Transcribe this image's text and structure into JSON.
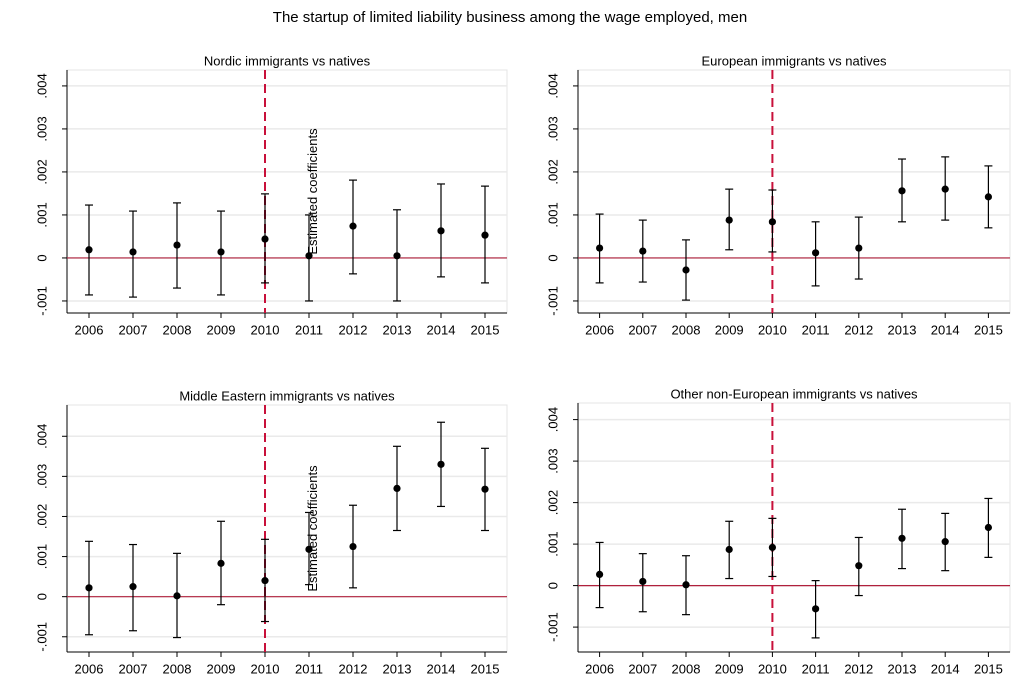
{
  "title": "The startup of limited liability business among the wage employed, men",
  "chart_data": [
    {
      "type": "errorbar",
      "title": "Nordic immigrants vs natives",
      "ylabel": "Estimated coefficients",
      "x": [
        2006,
        2007,
        2008,
        2009,
        2010,
        2011,
        2012,
        2013,
        2014,
        2015
      ],
      "series": [
        {
          "color": "#000000",
          "values": [
            0.00019,
            0.00014,
            0.0003,
            0.00014,
            0.00044,
            5e-05,
            0.00074,
            5e-05,
            0.00063,
            0.00053
          ],
          "lower": [
            -0.00086,
            -0.00091,
            -0.0007,
            -0.00086,
            -0.00058,
            -0.001,
            -0.00037,
            -0.001,
            -0.00044,
            -0.00058
          ],
          "upper": [
            0.00123,
            0.00109,
            0.00128,
            0.00109,
            0.00149,
            0.001,
            0.00181,
            0.00112,
            0.00172,
            0.00167
          ]
        }
      ],
      "xlim": [
        2005.5,
        2015.5
      ],
      "xticks": [
        2006,
        2007,
        2008,
        2009,
        2010,
        2011,
        2012,
        2013,
        2014,
        2015
      ],
      "ylim": [
        -0.00128,
        0.00437
      ],
      "yticks": [
        {
          "value": -0.001,
          "label": "-.001"
        },
        0,
        {
          "value": 0.001,
          "label": ".001"
        },
        {
          "value": 0.002,
          "label": ".002"
        },
        {
          "value": 0.003,
          "label": ".003"
        },
        {
          "value": 0.004,
          "label": ".004"
        }
      ],
      "grid": true,
      "refline_y": 0,
      "refline_y_color": "#b0203c",
      "refline_x": 2010,
      "refline_x_color": "#c8103a"
    },
    {
      "type": "errorbar",
      "title": "European immigrants vs natives",
      "x": [
        2006,
        2007,
        2008,
        2009,
        2010,
        2011,
        2012,
        2013,
        2014,
        2015
      ],
      "series": [
        {
          "color": "#000000",
          "values": [
            0.00023,
            0.00016,
            -0.00028,
            0.00088,
            0.00084,
            0.00012,
            0.00023,
            0.00156,
            0.0016,
            0.00142
          ],
          "lower": [
            -0.00058,
            -0.00056,
            -0.00098,
            0.00019,
            0.00014,
            -0.00065,
            -0.00049,
            0.00084,
            0.00088,
            0.0007
          ],
          "upper": [
            0.00102,
            0.00088,
            0.00042,
            0.0016,
            0.00158,
            0.00084,
            0.00095,
            0.0023,
            0.00235,
            0.00214
          ]
        }
      ],
      "xlim": [
        2005.5,
        2015.5
      ],
      "xticks": [
        2006,
        2007,
        2008,
        2009,
        2010,
        2011,
        2012,
        2013,
        2014,
        2015
      ],
      "ylim": [
        -0.00128,
        0.00437
      ],
      "yticks": [
        {
          "value": -0.001,
          "label": "-.001"
        },
        0,
        {
          "value": 0.001,
          "label": ".001"
        },
        {
          "value": 0.002,
          "label": ".002"
        },
        {
          "value": 0.003,
          "label": ".003"
        },
        {
          "value": 0.004,
          "label": ".004"
        }
      ],
      "grid": true,
      "refline_y": 0,
      "refline_y_color": "#b0203c",
      "refline_x": 2010,
      "refline_x_color": "#c8103a"
    },
    {
      "type": "errorbar",
      "title": "Middle Eastern immigrants vs natives",
      "ylabel": "Estimated coefficients",
      "x": [
        2006,
        2007,
        2008,
        2009,
        2010,
        2011,
        2012,
        2013,
        2014,
        2015
      ],
      "series": [
        {
          "color": "#000000",
          "values": [
            0.00022,
            0.00025,
            2e-05,
            0.00083,
            0.0004,
            0.00118,
            0.00125,
            0.0027,
            0.0033,
            0.00268
          ],
          "lower": [
            -0.00095,
            -0.00085,
            -0.00102,
            -0.0002,
            -0.00062,
            0.0003,
            0.00022,
            0.00165,
            0.00225,
            0.00165
          ],
          "upper": [
            0.00138,
            0.0013,
            0.00108,
            0.00188,
            0.00143,
            0.0021,
            0.00228,
            0.00375,
            0.00435,
            0.0037
          ]
        }
      ],
      "xlim": [
        2005.5,
        2015.5
      ],
      "xticks": [
        2006,
        2007,
        2008,
        2009,
        2010,
        2011,
        2012,
        2013,
        2014,
        2015
      ],
      "ylim": [
        -0.00138,
        0.00478
      ],
      "yticks": [
        {
          "value": -0.001,
          "label": "-.001"
        },
        0,
        {
          "value": 0.001,
          "label": ".001"
        },
        {
          "value": 0.002,
          "label": ".002"
        },
        {
          "value": 0.003,
          "label": ".003"
        },
        {
          "value": 0.004,
          "label": ".004"
        }
      ],
      "grid": true,
      "refline_y": 0,
      "refline_y_color": "#b0203c",
      "refline_x": 2010,
      "refline_x_color": "#c8103a"
    },
    {
      "type": "errorbar",
      "title": "Other non-European immigrants vs natives",
      "x": [
        2006,
        2007,
        2008,
        2009,
        2010,
        2011,
        2012,
        2013,
        2014,
        2015
      ],
      "series": [
        {
          "color": "#000000",
          "values": [
            0.00027,
            0.0001,
            2e-05,
            0.00087,
            0.00092,
            -0.00056,
            0.00048,
            0.00114,
            0.00106,
            0.0014
          ],
          "lower": [
            -0.00053,
            -0.00063,
            -0.0007,
            0.00017,
            0.00022,
            -0.00126,
            -0.00024,
            0.00041,
            0.00036,
            0.00068
          ],
          "upper": [
            0.00104,
            0.00077,
            0.00072,
            0.00155,
            0.00162,
            0.00012,
            0.00116,
            0.00184,
            0.00174,
            0.0021
          ]
        }
      ],
      "xlim": [
        2005.5,
        2015.5
      ],
      "xticks": [
        2006,
        2007,
        2008,
        2009,
        2010,
        2011,
        2012,
        2013,
        2014,
        2015
      ],
      "ylim": [
        -0.0016,
        0.0044
      ],
      "yticks": [
        {
          "value": -0.001,
          "label": "-.001"
        },
        0,
        {
          "value": 0.001,
          "label": ".001"
        },
        {
          "value": 0.002,
          "label": ".002"
        },
        {
          "value": 0.003,
          "label": ".003"
        },
        {
          "value": 0.004,
          "label": ".004"
        }
      ],
      "grid": true,
      "refline_y": 0,
      "refline_y_color": "#b0203c",
      "refline_x": 2010,
      "refline_x_color": "#c8103a"
    }
  ]
}
